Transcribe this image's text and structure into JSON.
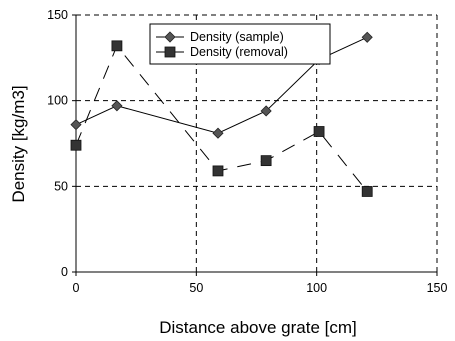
{
  "chart_data": {
    "type": "line",
    "title": "",
    "xlabel": "Distance above grate [cm]",
    "ylabel": "Density [kg/m3]",
    "xlim": [
      0,
      150
    ],
    "ylim": [
      0,
      150
    ],
    "x_ticks": [
      "0",
      "50",
      "100",
      "150"
    ],
    "y_ticks": [
      "0",
      "50",
      "100",
      "150"
    ],
    "grid": "dashed",
    "legend_position": "top",
    "series": [
      {
        "name": "Density (sample)",
        "marker": "diamond",
        "line": "solid",
        "color": "#555555",
        "x": [
          0,
          17,
          59,
          79,
          101,
          121
        ],
        "y": [
          86,
          97,
          81,
          94,
          124,
          137
        ]
      },
      {
        "name": "Density (removal)",
        "marker": "square",
        "line": "dashed",
        "color": "#333333",
        "x": [
          0,
          17,
          59,
          79,
          101,
          121
        ],
        "y": [
          74,
          132,
          59,
          65,
          82,
          47
        ]
      }
    ]
  }
}
